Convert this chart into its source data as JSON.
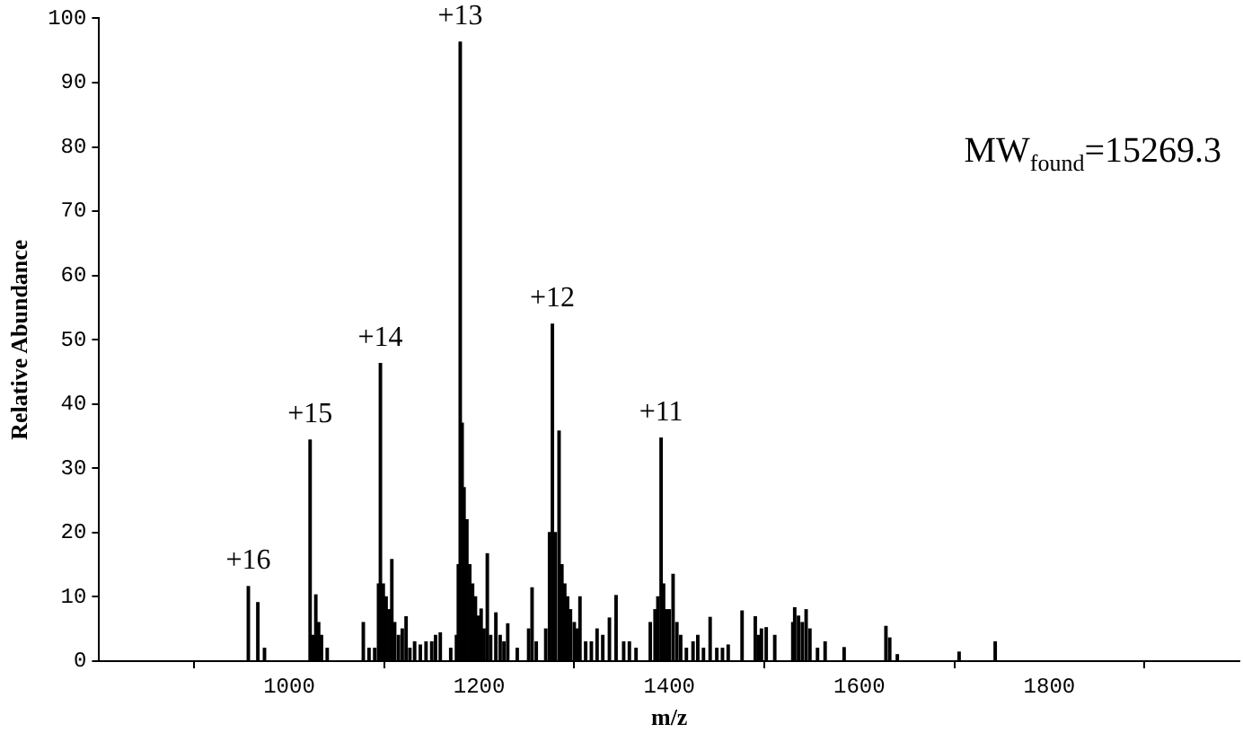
{
  "chart_data": {
    "type": "bar",
    "xlabel": "m/z",
    "ylabel": "Relative Abundance",
    "x": [
      957,
      967,
      974,
      1022,
      1025,
      1028,
      1031,
      1034,
      1040,
      1078,
      1084,
      1090,
      1094,
      1096,
      1099,
      1102,
      1105,
      1108,
      1111,
      1115,
      1119,
      1123,
      1127,
      1132,
      1138,
      1144,
      1150,
      1154,
      1159,
      1170,
      1176,
      1178,
      1180,
      1182,
      1184,
      1187,
      1190,
      1193,
      1196,
      1199,
      1202,
      1205,
      1208.5,
      1212,
      1217.5,
      1222,
      1226,
      1230,
      1240,
      1252,
      1255.6,
      1260,
      1270,
      1274,
      1277,
      1280,
      1284,
      1287,
      1290,
      1293,
      1296,
      1300,
      1303,
      1306,
      1312,
      1318,
      1324,
      1330,
      1337,
      1344,
      1352,
      1358,
      1365,
      1380,
      1385,
      1388,
      1391.4,
      1394,
      1397,
      1400,
      1404,
      1408,
      1412,
      1418,
      1425,
      1430,
      1436,
      1443,
      1450,
      1456,
      1462,
      1476.6,
      1490.5,
      1494,
      1497,
      1502,
      1511,
      1530,
      1532,
      1536,
      1540,
      1544,
      1548,
      1556,
      1564,
      1584,
      1628,
      1632,
      1640,
      1705,
      1743
    ],
    "series": [
      {
        "color": "#000000",
        "values": [
          11.6,
          9.1,
          2,
          34.4,
          4,
          10.3,
          6,
          4,
          2,
          6,
          2,
          2,
          12,
          46.3,
          12,
          10,
          8,
          15.8,
          6,
          4,
          5,
          6.9,
          2,
          3,
          2.5,
          3,
          3,
          4,
          4.4,
          2,
          4,
          15,
          96.3,
          37,
          27,
          22,
          15,
          12,
          10,
          7,
          8.1,
          5,
          16.7,
          4,
          7.5,
          4,
          3,
          5.8,
          2,
          5,
          11.4,
          3,
          5,
          20,
          52.4,
          20,
          35.8,
          15,
          12,
          10,
          8,
          6,
          5,
          10,
          3,
          3,
          5,
          4,
          6.7,
          10.2,
          3,
          3,
          2,
          6,
          8,
          10,
          34.7,
          12,
          8,
          8,
          13.5,
          6,
          4,
          2,
          3,
          4,
          2,
          6.8,
          2,
          2,
          2.5,
          7.8,
          6.9,
          4,
          5,
          5.2,
          4,
          6,
          8.3,
          7,
          6,
          8,
          5,
          2,
          3,
          2.1,
          5.4,
          3.6,
          1,
          1.4,
          3
        ]
      }
    ],
    "xlim": [
      800,
      2000
    ],
    "xticks": [
      1000,
      1200,
      1400,
      1600,
      1800
    ],
    "ylim": [
      0,
      100
    ],
    "yticks": [
      0,
      10,
      20,
      30,
      40,
      50,
      60,
      70,
      80,
      90,
      100
    ],
    "grid": false,
    "legend": false,
    "annotations": [
      {
        "text": "+16",
        "x": 957,
        "y": 11.6
      },
      {
        "text": "+15",
        "x": 1022,
        "y": 34.4
      },
      {
        "text": "+14",
        "x": 1096,
        "y": 46.3
      },
      {
        "text": "+13",
        "x": 1180,
        "y": 96.3
      },
      {
        "text": "+12",
        "x": 1277,
        "y": 52.4
      },
      {
        "text": "+11",
        "x": 1391.4,
        "y": 34.7
      },
      "MW$_{found}$=15269.3"
    ]
  }
}
